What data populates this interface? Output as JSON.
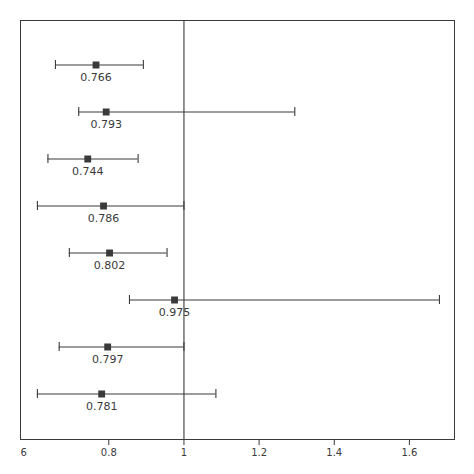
{
  "chart_data": {
    "type": "forest",
    "categories": [
      null,
      null,
      null,
      null,
      null,
      null,
      null,
      null
    ],
    "values": [
      0.766,
      0.793,
      0.744,
      0.786,
      0.802,
      0.975,
      0.797,
      0.781
    ],
    "ci_low": [
      0.658,
      0.72,
      0.638,
      0.61,
      0.695,
      0.855,
      0.668,
      0.61
    ],
    "ci_high": [
      0.892,
      1.295,
      0.878,
      1.0,
      0.955,
      1.68,
      1.0,
      1.085
    ],
    "reference_x": 1.0,
    "annotations": [
      "6"
    ],
    "xlim": [
      0.565,
      1.72
    ],
    "xticks": [
      0.8,
      1,
      1.2,
      1.4,
      1.6
    ],
    "color": "#3a3a3a",
    "marker": "square",
    "data_labels": true,
    "tick_labels": "x"
  }
}
